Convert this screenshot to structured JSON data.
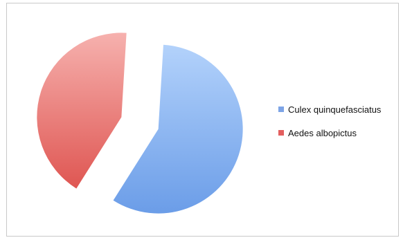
{
  "chart_data": {
    "type": "pie",
    "slices": [
      {
        "label": "Culex quinquefasciatus",
        "value": 58,
        "color": "#7da4e6"
      },
      {
        "label": "Aedes albopictus",
        "value": 42,
        "color": "#e35f5f"
      }
    ],
    "exploded": true,
    "legend_position": "right"
  }
}
